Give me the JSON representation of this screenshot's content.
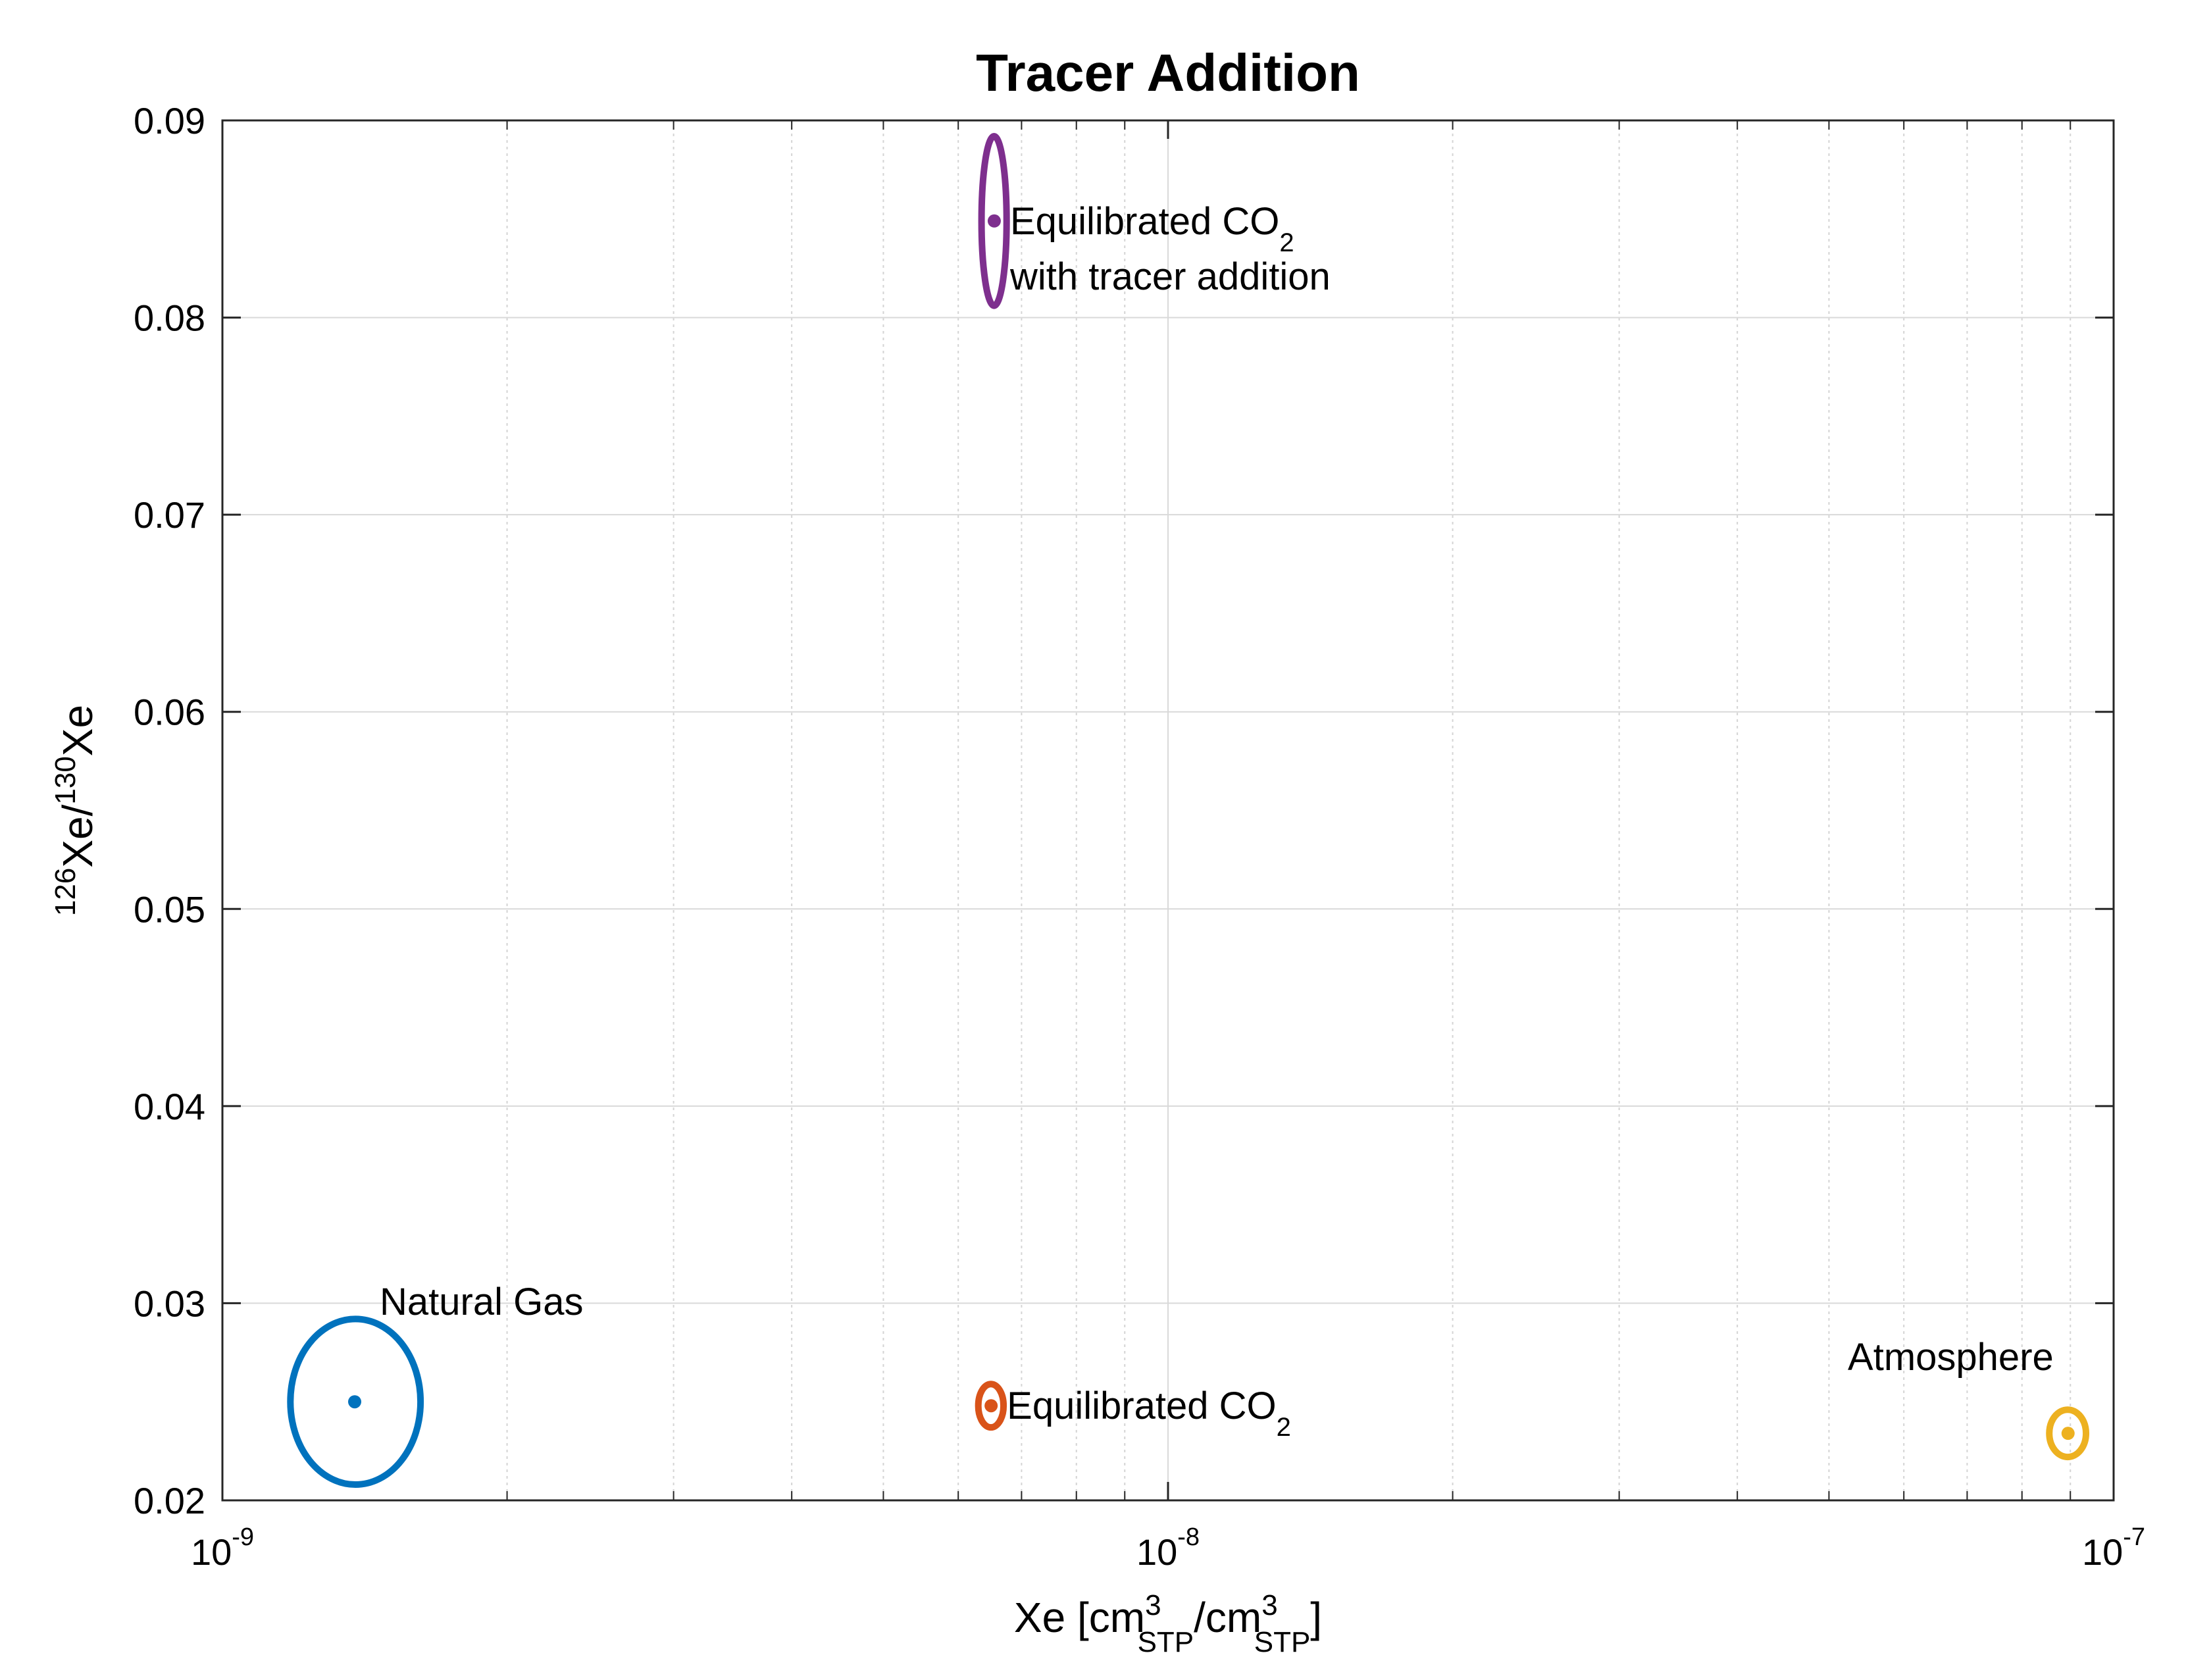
{
  "chart_data": {
    "type": "scatter",
    "title": "Tracer Addition",
    "xlabel": {
      "base": "Xe [cm",
      "sup1": "3",
      "sub1": "STP",
      "mid": "/cm",
      "sup2": "3",
      "sub2": "STP",
      "end": "]"
    },
    "ylabel": {
      "sup1": "126",
      "mid": "Xe/",
      "sup2": "130",
      "end": "Xe"
    },
    "xscale": "log",
    "xlim": [
      1e-09,
      1e-07
    ],
    "ylim": [
      0.02,
      0.09
    ],
    "grid": true,
    "minor_grid_x": true,
    "xticks": [
      {
        "value": 1e-09,
        "base": "10",
        "exp": "-9"
      },
      {
        "value": 1e-08,
        "base": "10",
        "exp": "-8"
      },
      {
        "value": 1e-07,
        "base": "10",
        "exp": "-7"
      }
    ],
    "yticks": [
      {
        "value": 0.02,
        "label": "0.02"
      },
      {
        "value": 0.03,
        "label": "0.03"
      },
      {
        "value": 0.04,
        "label": "0.04"
      },
      {
        "value": 0.05,
        "label": "0.05"
      },
      {
        "value": 0.06,
        "label": "0.06"
      },
      {
        "value": 0.07,
        "label": "0.07"
      },
      {
        "value": 0.08,
        "label": "0.08"
      },
      {
        "value": 0.09,
        "label": "0.09"
      }
    ],
    "series": [
      {
        "name": "Natural Gas",
        "color": "#0072BD",
        "x": 1.38e-09,
        "y": 0.025,
        "x_range": [
          1.18e-09,
          1.62e-09
        ],
        "y_range": [
          0.0208,
          0.0292
        ],
        "label": {
          "text": "Natural Gas"
        }
      },
      {
        "name": "Equilibrated CO2",
        "color": "#D95319",
        "x": 6.5e-09,
        "y": 0.0248,
        "x_range": [
          6.3e-09,
          6.7e-09
        ],
        "y_range": [
          0.0237,
          0.0259
        ],
        "label": {
          "text": "Equilibrated CO",
          "sub": "2"
        }
      },
      {
        "name": "Equilibrated CO2 with tracer addition",
        "color": "#7E2F8E",
        "x": 6.55e-09,
        "y": 0.0849,
        "x_range": [
          6.35e-09,
          6.75e-09
        ],
        "y_range": [
          0.0806,
          0.0892
        ],
        "label": {
          "text": "Equilibrated CO",
          "sub": "2",
          "line2": "with tracer addition"
        }
      },
      {
        "name": "Atmosphere",
        "color": "#EDB120",
        "x": 8.95e-08,
        "y": 0.0234,
        "x_range": [
          8.55e-08,
          9.35e-08
        ],
        "y_range": [
          0.0222,
          0.0246
        ],
        "label": {
          "text": "Atmosphere"
        }
      }
    ]
  }
}
